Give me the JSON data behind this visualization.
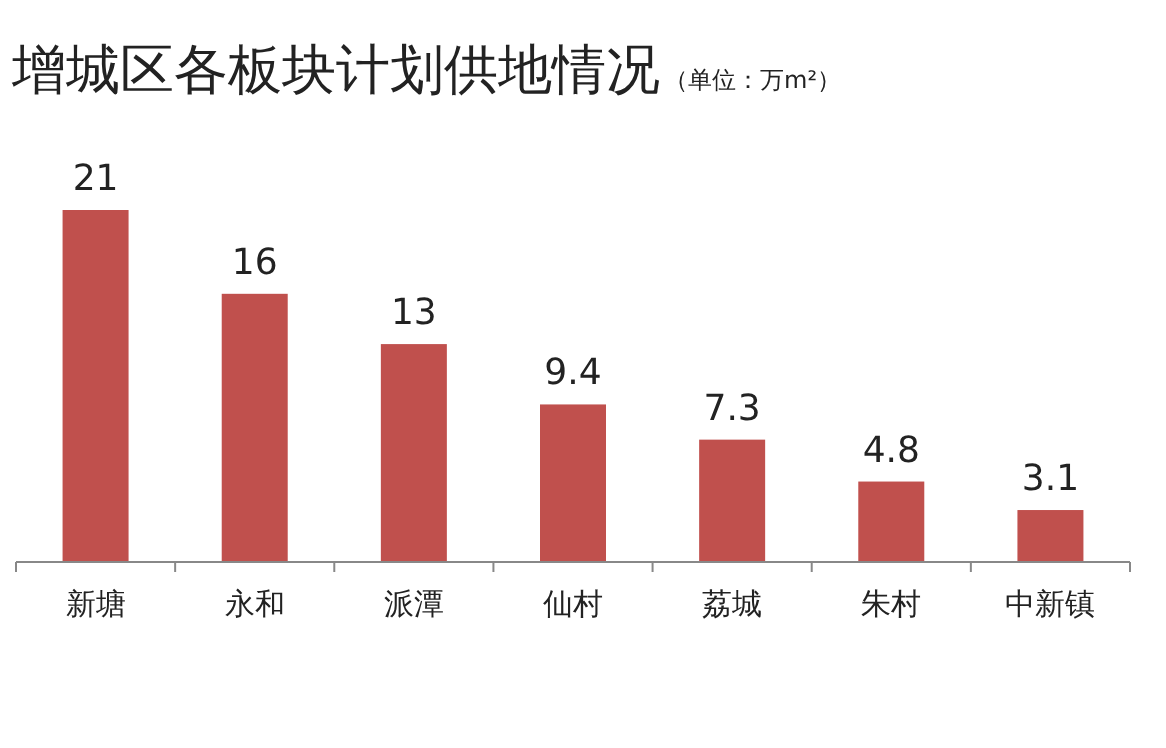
{
  "chart_data": {
    "type": "bar",
    "title": "增城区各板块计划供地情况",
    "subtitle": "（单位：万m²）",
    "categories": [
      "新塘",
      "永和",
      "派潭",
      "仙村",
      "荔城",
      "朱村",
      "中新镇"
    ],
    "values": [
      21,
      16,
      13,
      9.4,
      7.3,
      4.8,
      3.1
    ],
    "color": "#c0504d",
    "data_labels": true
  }
}
